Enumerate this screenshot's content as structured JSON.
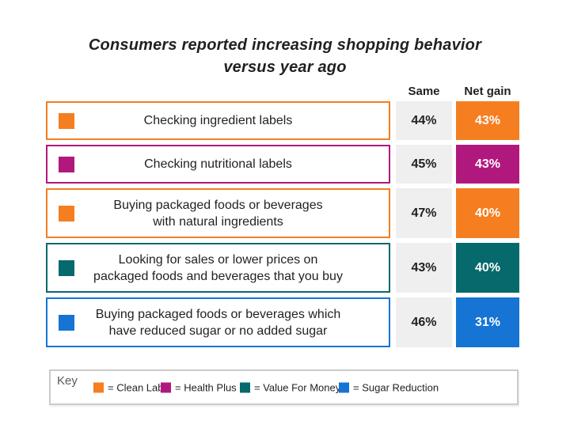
{
  "title": {
    "line1": "Consumers reported increasing shopping behavior",
    "line2": "versus year ago"
  },
  "columns": {
    "same": "Same",
    "net_gain": "Net gain"
  },
  "rows": [
    {
      "lines": [
        "Checking ingredient labels"
      ],
      "same": "44%",
      "net_gain": "43%",
      "segment": "Clean Label",
      "color": "#F57E20"
    },
    {
      "lines": [
        "Checking nutritional labels"
      ],
      "same": "45%",
      "net_gain": "43%",
      "segment": "Health Plus",
      "color": "#B1187E"
    },
    {
      "lines": [
        "Buying packaged foods or beverages",
        "with natural ingredients"
      ],
      "same": "47%",
      "net_gain": "40%",
      "segment": "Clean Label",
      "color": "#F57E20"
    },
    {
      "lines": [
        "Looking for sales or lower prices on",
        "packaged foods and beverages that you buy"
      ],
      "same": "43%",
      "net_gain": "40%",
      "segment": "Value For Money",
      "color": "#06696B"
    },
    {
      "lines": [
        "Buying packaged foods or beverages which",
        "have reduced sugar or no added sugar"
      ],
      "same": "46%",
      "net_gain": "31%",
      "segment": "Sugar Reduction",
      "color": "#1574D4"
    }
  ],
  "legend": {
    "title": "Key",
    "items": [
      {
        "label": "= Clean Label",
        "color": "#F57E20"
      },
      {
        "label": "= Health Plus",
        "color": "#B1187E"
      },
      {
        "label": "= Value For Money",
        "color": "#06696B"
      },
      {
        "label": "= Sugar Reduction",
        "color": "#1574D4"
      }
    ]
  },
  "colors": {
    "clean_label": "#F57E20",
    "health_plus": "#B1187E",
    "value_for_money": "#06696B",
    "sugar_reduction": "#1574D4",
    "same_cell_bg": "#EFEFEF",
    "text_dark": "#231F20",
    "key_border": "#CBCBCB",
    "key_title_gray": "#58595B"
  },
  "chart_data": {
    "type": "table",
    "title": "Consumers reported increasing shopping behavior versus year ago",
    "categories": [
      "Checking ingredient labels",
      "Checking nutritional labels",
      "Buying packaged foods or beverages with natural ingredients",
      "Looking for sales or lower prices on packaged foods and beverages that you buy",
      "Buying packaged foods or beverages which have reduced sugar or no added sugar"
    ],
    "series": [
      {
        "name": "Same",
        "values": [
          44,
          45,
          47,
          43,
          46
        ],
        "unit": "%"
      },
      {
        "name": "Net gain",
        "values": [
          43,
          43,
          40,
          40,
          31
        ],
        "unit": "%"
      }
    ],
    "category_segments": [
      "Clean Label",
      "Health Plus",
      "Clean Label",
      "Value For Money",
      "Sugar Reduction"
    ],
    "legend_entries": [
      "Clean Label",
      "Health Plus",
      "Value For Money",
      "Sugar Reduction"
    ],
    "legend_position": "bottom"
  }
}
